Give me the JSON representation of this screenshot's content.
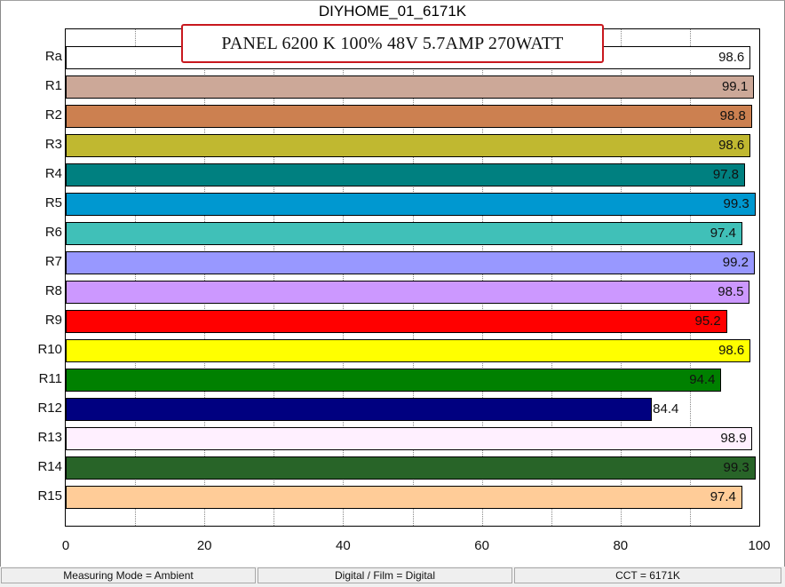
{
  "chart_data": {
    "type": "bar",
    "orientation": "horizontal",
    "title": "DIYHOME_01_6171K",
    "annotation": "PANEL 6200  K 100% 48V 5.7AMP  270WATT",
    "categories": [
      "Ra",
      "R1",
      "R2",
      "R3",
      "R4",
      "R5",
      "R6",
      "R7",
      "R8",
      "R9",
      "R10",
      "R11",
      "R12",
      "R13",
      "R14",
      "R15"
    ],
    "values": [
      98.6,
      99.1,
      98.8,
      98.6,
      97.8,
      99.3,
      97.4,
      99.2,
      98.5,
      95.2,
      98.6,
      94.4,
      84.4,
      98.9,
      99.3,
      97.4
    ],
    "labels": [
      "98.6",
      "99.1",
      "98.8",
      "98.6",
      "97.8",
      "99.3",
      "97.4",
      "99.2",
      "98.5",
      "95.2",
      "98.6",
      "94.4",
      "84.4",
      "98.9",
      "99.3",
      "97.4"
    ],
    "colors": [
      "#ffffff",
      "#cca898",
      "#cc8050",
      "#c0b830",
      "#008080",
      "#0098d0",
      "#40c0b8",
      "#9898ff",
      "#cc98ff",
      "#ff0000",
      "#ffff00",
      "#008000",
      "#000080",
      "#fff0ff",
      "#286428",
      "#ffcc98"
    ],
    "xlim": [
      0,
      100
    ],
    "xticks": [
      "0",
      "20",
      "40",
      "60",
      "80",
      "100"
    ],
    "grid": "vertical dotted every 10",
    "xlabel": "",
    "ylabel": ""
  },
  "statusbar": {
    "mode": "Measuring Mode = Ambient",
    "film": "Digital / Film = Digital",
    "cct": "CCT = 6171K"
  }
}
